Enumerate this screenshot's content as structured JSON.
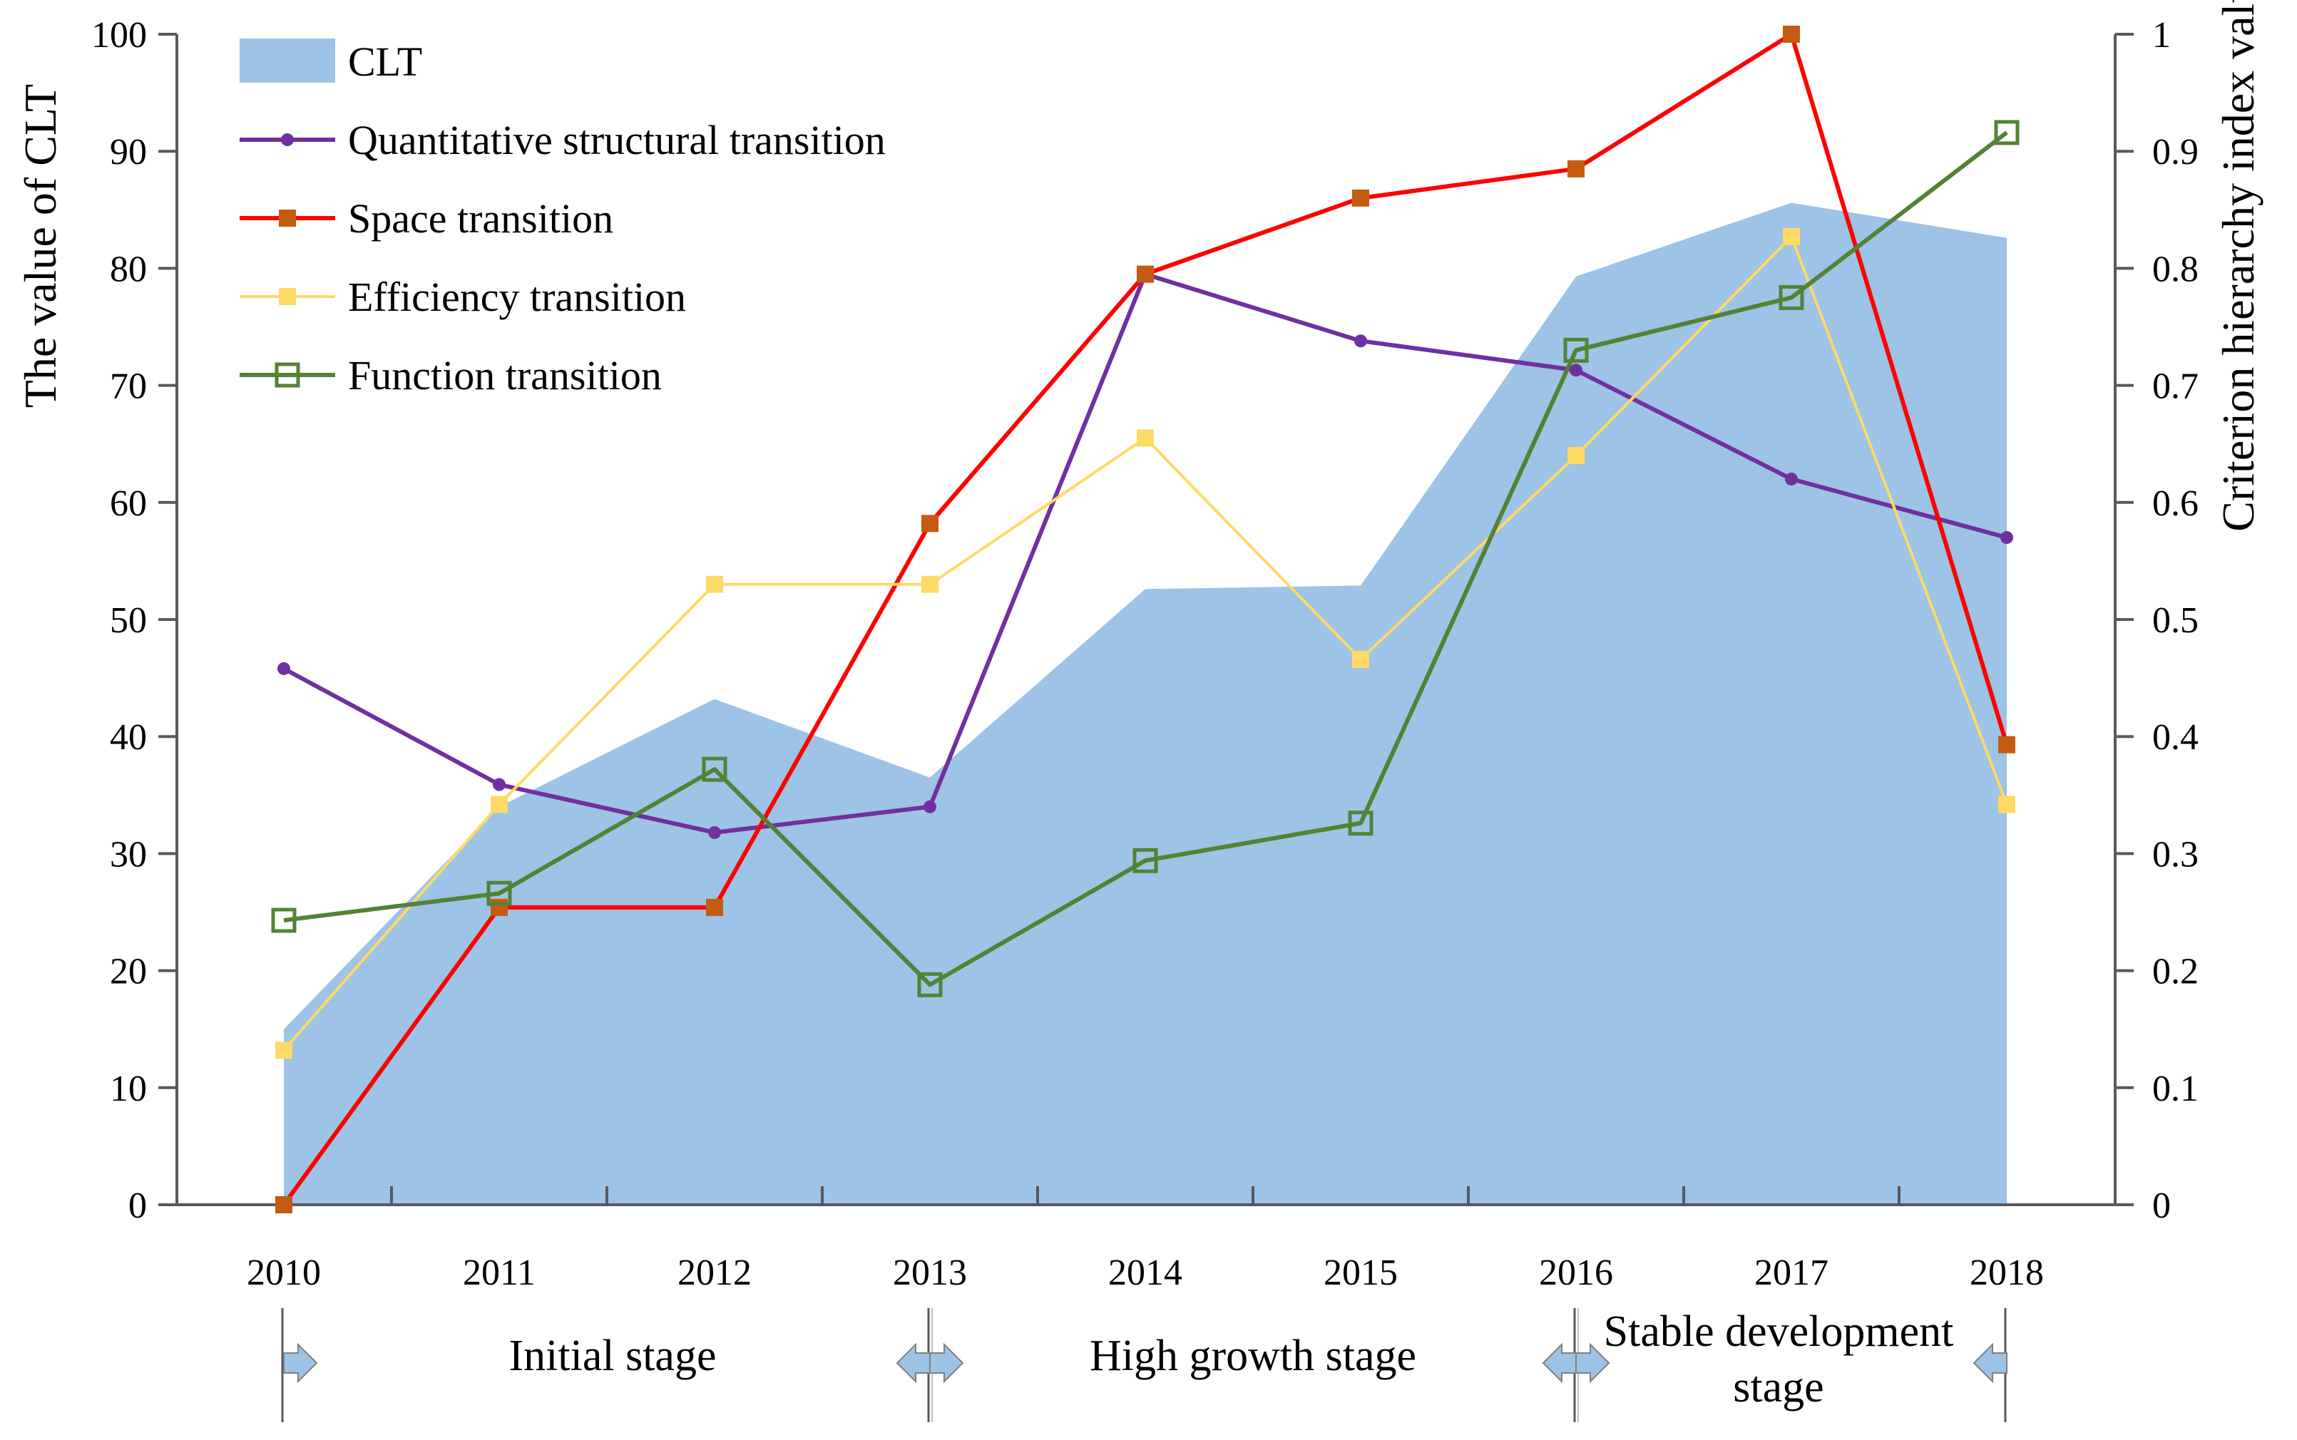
{
  "chart_data": {
    "type": "area",
    "title": "",
    "categories": [
      "2010",
      "2011",
      "2012",
      "2013",
      "2014",
      "2015",
      "2016",
      "2017",
      "2018"
    ],
    "left_axis": {
      "label": "The value of CLT",
      "range": [
        0,
        100
      ],
      "ticks": [
        0,
        10,
        20,
        30,
        40,
        50,
        60,
        70,
        80,
        90,
        100
      ],
      "tick_labels": [
        "0",
        "10",
        "20",
        "30",
        "40",
        "50",
        "60",
        "70",
        "80",
        "90",
        "100"
      ]
    },
    "right_axis": {
      "label": "Criterion hierarchy index value",
      "range": [
        0,
        1
      ],
      "ticks": [
        0,
        0.1,
        0.2,
        0.3,
        0.4,
        0.5,
        0.6,
        0.7,
        0.8,
        0.9,
        1
      ],
      "tick_labels": [
        "0",
        "0.1",
        "0.2",
        "0.3",
        "0.4",
        "0.5",
        "0.6",
        "0.7",
        "0.8",
        "0.9",
        "1"
      ]
    },
    "grid": false,
    "legend_position": "top-left",
    "series": [
      {
        "name": "CLT",
        "kind": "area",
        "axis": "left",
        "color": "#9DC3E6",
        "values": [
          15,
          34,
          43.2,
          36.5,
          52.6,
          52.9,
          79.3,
          85.6,
          82.6
        ]
      },
      {
        "name": "Quantitative structural transition",
        "kind": "line",
        "marker": "dot",
        "axis": "right",
        "color": "#7030A0",
        "values": [
          0.458,
          0.359,
          0.318,
          0.34,
          0.795,
          0.738,
          0.713,
          0.62,
          0.57
        ]
      },
      {
        "name": "Space transition",
        "kind": "line",
        "marker": "filled-square",
        "axis": "right",
        "color": "#FF0000",
        "marker_color": "#C55A11",
        "values": [
          0,
          0.254,
          0.254,
          0.582,
          0.795,
          0.86,
          0.885,
          1.0,
          0.393
        ]
      },
      {
        "name": "Efficiency transition",
        "kind": "line",
        "marker": "filled-square",
        "axis": "right",
        "color": "#FFD966",
        "values": [
          0.132,
          0.342,
          0.53,
          0.53,
          0.655,
          0.466,
          0.64,
          0.827,
          0.342
        ]
      },
      {
        "name": "Function transition",
        "kind": "line",
        "marker": "hollow-square",
        "axis": "right",
        "color": "#548235",
        "values": [
          0.243,
          0.266,
          0.372,
          0.188,
          0.294,
          0.326,
          0.73,
          0.775,
          0.916
        ]
      }
    ],
    "stages": [
      {
        "label": "Initial stage",
        "from": "2010",
        "to": "2013"
      },
      {
        "label": "High growth stage",
        "from": "2013",
        "to": "2016"
      },
      {
        "label": "Stable development stage",
        "from": "2016",
        "to": "2018"
      }
    ],
    "stage_arrow_color": "#9DC3E6"
  }
}
